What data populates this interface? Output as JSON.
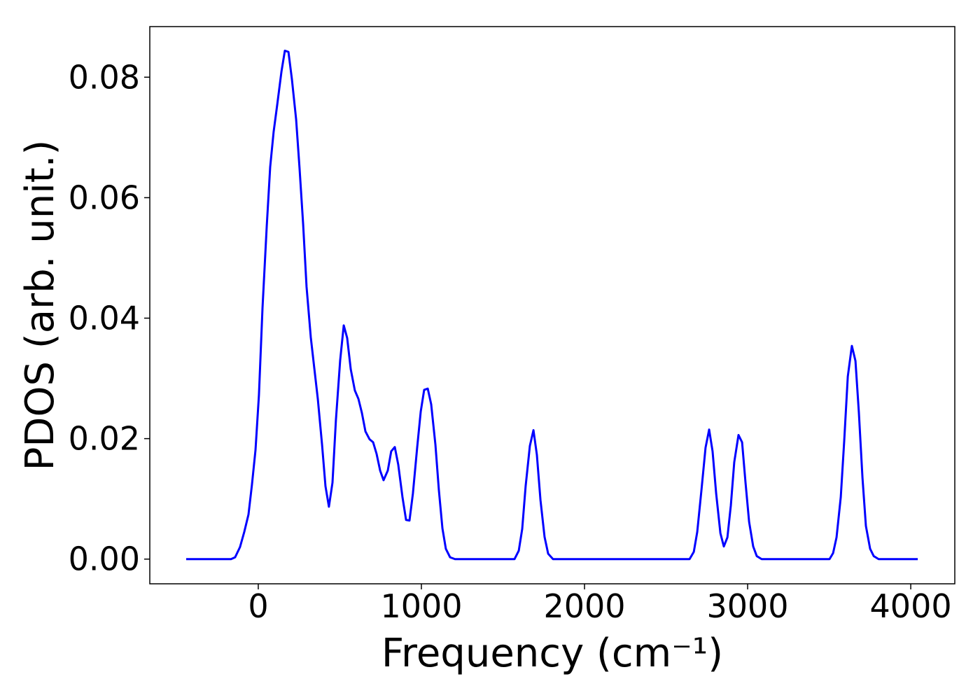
{
  "chart_data": {
    "type": "line",
    "xlabel": "Frequency (cm⁻¹)",
    "ylabel": "PDOS (arb. unit.)",
    "xlim": [
      -665,
      4270
    ],
    "ylim": [
      -0.0041,
      0.0884
    ],
    "xticks": [
      0,
      1000,
      2000,
      3000,
      4000
    ],
    "yticks": [
      {
        "value": 0,
        "label": "0.00"
      },
      {
        "value": 0.02,
        "label": "0.02"
      },
      {
        "value": 0.04,
        "label": "0.04"
      },
      {
        "value": 0.06,
        "label": "0.06"
      },
      {
        "value": 0.08,
        "label": "0.08"
      }
    ],
    "grid": false,
    "series": [
      {
        "color": "#0000ff",
        "x": [
          -442,
          -167,
          -142,
          -112,
          -86,
          -60,
          -39,
          -17,
          4,
          26,
          52,
          73,
          94,
          116,
          142,
          163,
          185,
          206,
          232,
          253,
          275,
          296,
          322,
          343,
          365,
          391,
          412,
          433,
          455,
          476,
          502,
          524,
          545,
          567,
          592,
          614,
          635,
          657,
          682,
          704,
          725,
          747,
          768,
          794,
          815,
          837,
          858,
          884,
          906,
          927,
          948,
          974,
          996,
          1017,
          1039,
          1060,
          1086,
          1107,
          1129,
          1150,
          1176,
          1206,
          1571,
          1597,
          1618,
          1639,
          1665,
          1687,
          1708,
          1730,
          1755,
          1777,
          1807,
          2644,
          2670,
          2691,
          2717,
          2742,
          2764,
          2785,
          2807,
          2833,
          2854,
          2876,
          2897,
          2918,
          2944,
          2966,
          2987,
          3009,
          3034,
          3056,
          3086,
          3502,
          3524,
          3545,
          3571,
          3592,
          3614,
          3639,
          3661,
          3682,
          3704,
          3725,
          3751,
          3773,
          3803,
          4043
        ],
        "values": [
          0,
          0,
          0.0003,
          0.002,
          0.0045,
          0.0074,
          0.0123,
          0.0181,
          0.0272,
          0.0417,
          0.0553,
          0.0651,
          0.0709,
          0.0754,
          0.0809,
          0.0844,
          0.0842,
          0.0797,
          0.073,
          0.0649,
          0.0556,
          0.0452,
          0.0368,
          0.0318,
          0.0266,
          0.019,
          0.0121,
          0.0087,
          0.0127,
          0.0231,
          0.033,
          0.0388,
          0.0367,
          0.0315,
          0.028,
          0.0266,
          0.0243,
          0.0212,
          0.0199,
          0.0194,
          0.0175,
          0.0147,
          0.0131,
          0.0147,
          0.0179,
          0.0186,
          0.0157,
          0.0103,
          0.0065,
          0.0064,
          0.0109,
          0.0185,
          0.0245,
          0.0281,
          0.0283,
          0.0257,
          0.019,
          0.0115,
          0.0051,
          0.0017,
          0.0003,
          0,
          0,
          0.0014,
          0.005,
          0.0121,
          0.0188,
          0.0214,
          0.0173,
          0.0098,
          0.0037,
          0.0009,
          0,
          0,
          0.0012,
          0.0045,
          0.0115,
          0.0185,
          0.0215,
          0.0179,
          0.0109,
          0.0043,
          0.0021,
          0.0036,
          0.0089,
          0.0161,
          0.0206,
          0.0194,
          0.0127,
          0.0062,
          0.0021,
          0.0005,
          0,
          0,
          0.001,
          0.0036,
          0.0103,
          0.0196,
          0.0303,
          0.0354,
          0.0329,
          0.0243,
          0.0135,
          0.0055,
          0.0017,
          0.0005,
          0,
          0
        ]
      }
    ]
  }
}
